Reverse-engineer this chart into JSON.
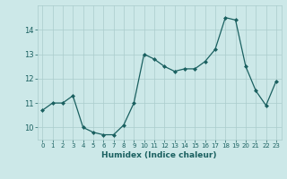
{
  "x": [
    0,
    1,
    2,
    3,
    4,
    5,
    6,
    7,
    8,
    9,
    10,
    11,
    12,
    13,
    14,
    15,
    16,
    17,
    18,
    19,
    20,
    21,
    22,
    23
  ],
  "y": [
    10.7,
    11.0,
    11.0,
    11.3,
    10.0,
    9.8,
    9.7,
    9.7,
    10.1,
    11.0,
    13.0,
    12.8,
    12.5,
    12.3,
    12.4,
    12.4,
    12.7,
    13.2,
    14.5,
    14.4,
    12.5,
    11.5,
    10.9,
    11.9
  ],
  "xlabel": "Humidex (Indice chaleur)",
  "bg_color": "#cce8e8",
  "grid_color": "#aacccc",
  "line_color": "#1a6060",
  "ylim": [
    9.5,
    15.0
  ],
  "yticks": [
    10,
    11,
    12,
    13,
    14
  ],
  "xticks": [
    0,
    1,
    2,
    3,
    4,
    5,
    6,
    7,
    8,
    9,
    10,
    11,
    12,
    13,
    14,
    15,
    16,
    17,
    18,
    19,
    20,
    21,
    22,
    23
  ]
}
